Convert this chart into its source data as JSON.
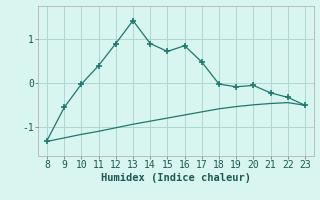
{
  "x": [
    8,
    9,
    10,
    11,
    12,
    13,
    14,
    15,
    16,
    17,
    18,
    19,
    20,
    21,
    22,
    23
  ],
  "y_upper": [
    -1.3,
    -0.55,
    -0.02,
    0.4,
    0.9,
    1.42,
    0.9,
    0.72,
    0.85,
    0.48,
    -0.02,
    -0.08,
    -0.05,
    -0.22,
    -0.32,
    -0.5
  ],
  "y_lower": [
    -1.32,
    -1.24,
    -1.16,
    -1.09,
    -1.01,
    -0.93,
    -0.86,
    -0.79,
    -0.72,
    -0.65,
    -0.58,
    -0.53,
    -0.49,
    -0.46,
    -0.44,
    -0.5
  ],
  "line_color": "#1a7a6e",
  "bg_color": "#d8f5f0",
  "grid_color": "#aed8d3",
  "xlabel": "Humidex (Indice chaleur)",
  "yticks": [
    -1,
    0,
    1
  ],
  "xticks": [
    8,
    9,
    10,
    11,
    12,
    13,
    14,
    15,
    16,
    17,
    18,
    19,
    20,
    21,
    22,
    23
  ],
  "ylim": [
    -1.65,
    1.75
  ],
  "xlim": [
    7.5,
    23.5
  ],
  "xlabel_fontsize": 7.5,
  "tick_fontsize": 7
}
